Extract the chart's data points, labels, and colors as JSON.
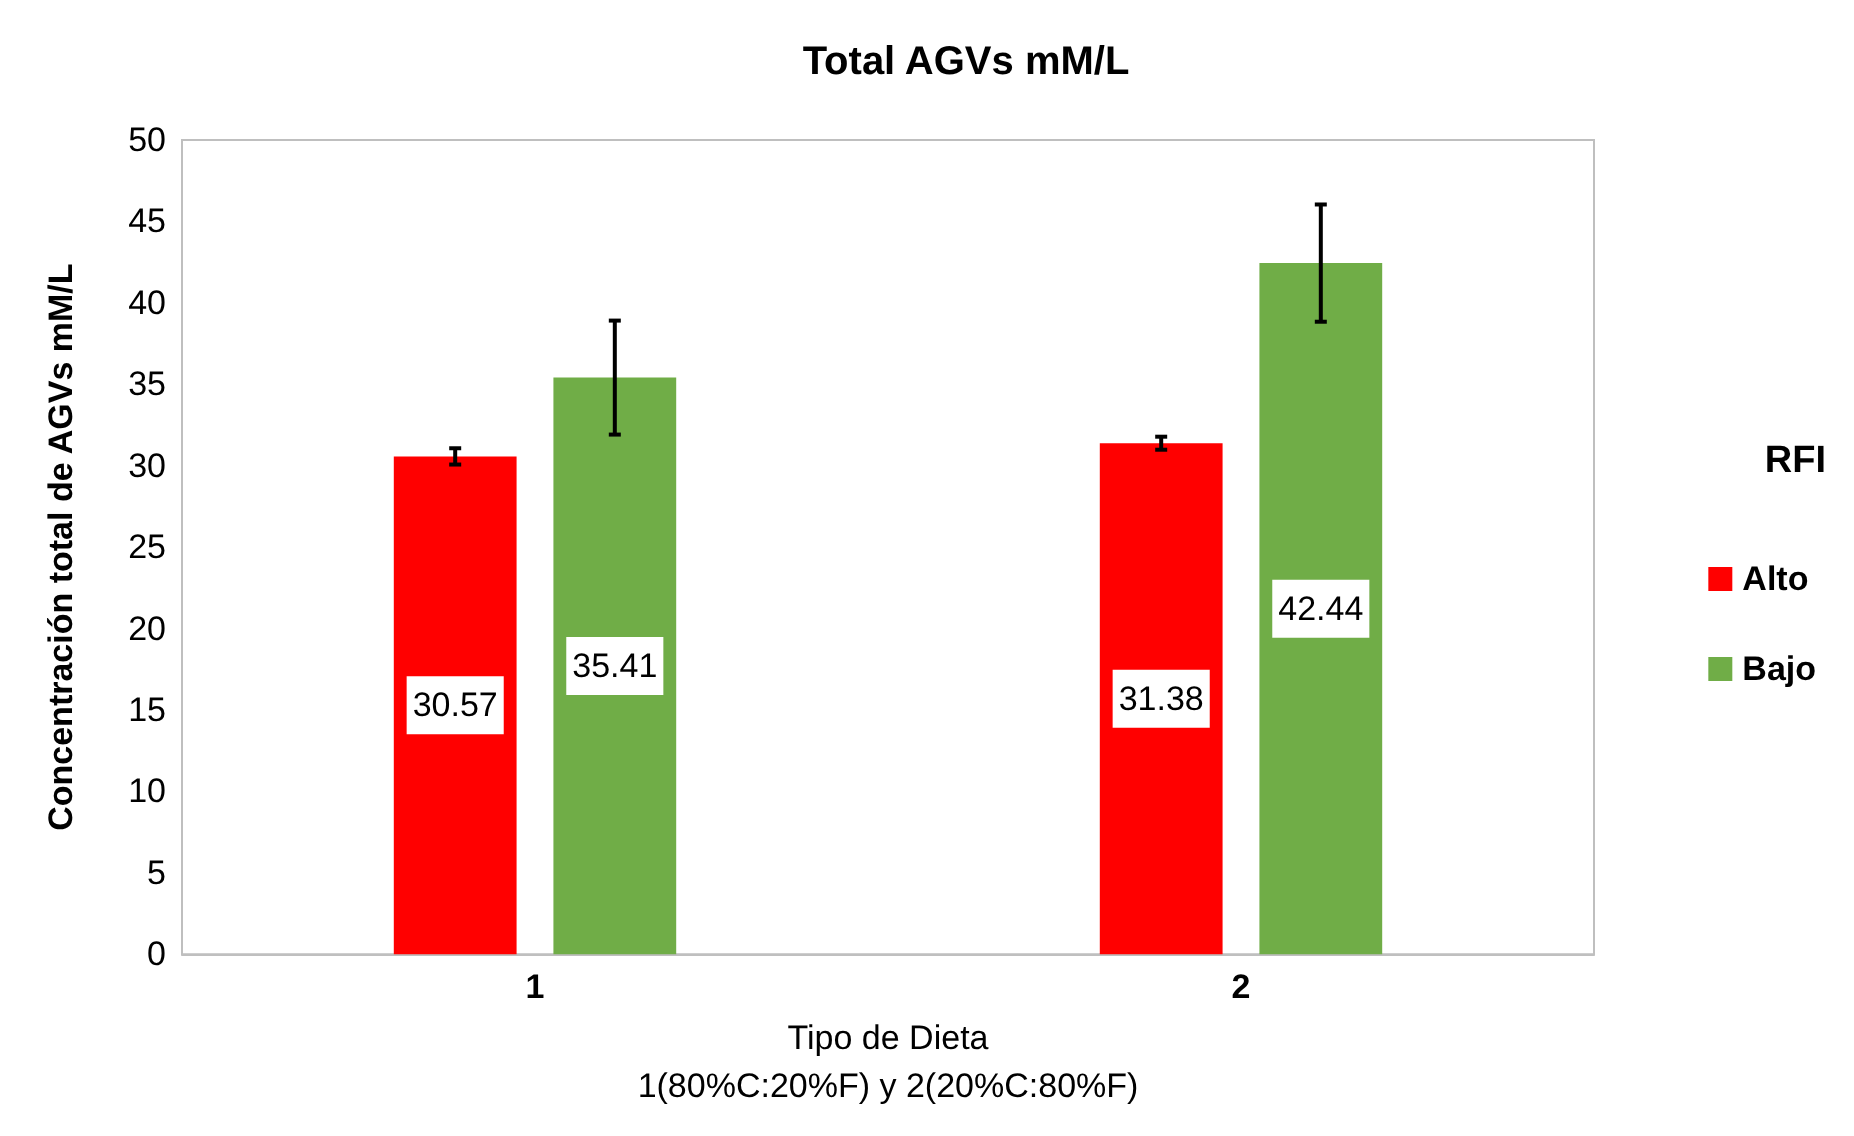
{
  "chart_data": {
    "type": "bar",
    "title": "Total AGVs mM/L",
    "xlabel": "Tipo de Dieta\n1(80%C:20%F) y 2(20%C:80%F)",
    "ylabel": "Concentración total de AGVs mM/L",
    "legend_title": "RFI",
    "categories": [
      "1",
      "2"
    ],
    "series": [
      {
        "name": "Alto",
        "color": "#ff0000",
        "values": [
          30.57,
          31.38
        ],
        "errors": [
          0.5,
          0.4
        ]
      },
      {
        "name": "Bajo",
        "color": "#70ad47",
        "values": [
          35.41,
          42.44
        ],
        "errors": [
          3.5,
          3.6
        ]
      }
    ],
    "ylim": [
      0,
      50
    ],
    "yticks": [
      0,
      5,
      10,
      15,
      20,
      25,
      30,
      35,
      40,
      45,
      50
    ],
    "grid": false,
    "legend": "right",
    "data_labels": true
  }
}
